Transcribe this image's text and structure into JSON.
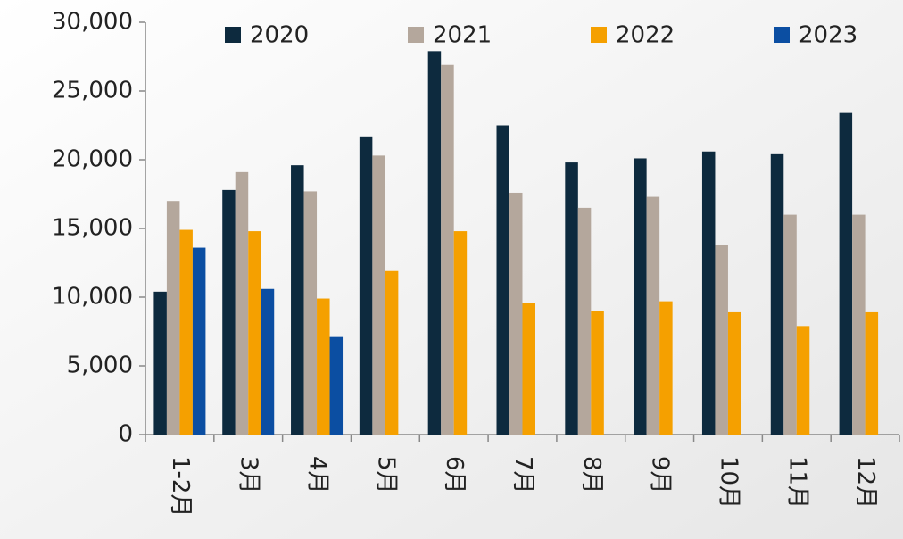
{
  "chart_data": {
    "type": "bar",
    "categories": [
      "1-2月",
      "3月",
      "4月",
      "5月",
      "6月",
      "7月",
      "8月",
      "9月",
      "10月",
      "11月",
      "12月"
    ],
    "series": [
      {
        "name": "2020",
        "color": "#0d2a3e",
        "values": [
          10400,
          17800,
          19600,
          21700,
          27900,
          22500,
          19800,
          20100,
          20600,
          20400,
          23400
        ]
      },
      {
        "name": "2021",
        "color": "#b4a79c",
        "values": [
          17000,
          19100,
          17700,
          20300,
          26900,
          17600,
          16500,
          17300,
          13800,
          16000,
          16000
        ]
      },
      {
        "name": "2022",
        "color": "#f5a000",
        "values": [
          14900,
          14800,
          9900,
          11900,
          14800,
          9600,
          9000,
          9700,
          8900,
          7900,
          8900
        ]
      },
      {
        "name": "2023",
        "color": "#0b4ea2",
        "values": [
          13600,
          10600,
          7100,
          null,
          null,
          null,
          null,
          null,
          null,
          null,
          null
        ]
      }
    ],
    "ylim": [
      0,
      30000
    ],
    "yticks": [
      0,
      {
        "value": 5000,
        "label": "5,000"
      },
      {
        "value": 10000,
        "label": "10,000"
      },
      {
        "value": 15000,
        "label": "15,000"
      },
      {
        "value": 20000,
        "label": "20,000"
      },
      {
        "value": 25000,
        "label": "25,000"
      },
      {
        "value": 30000,
        "label": "30,000"
      }
    ],
    "legend": "top"
  }
}
